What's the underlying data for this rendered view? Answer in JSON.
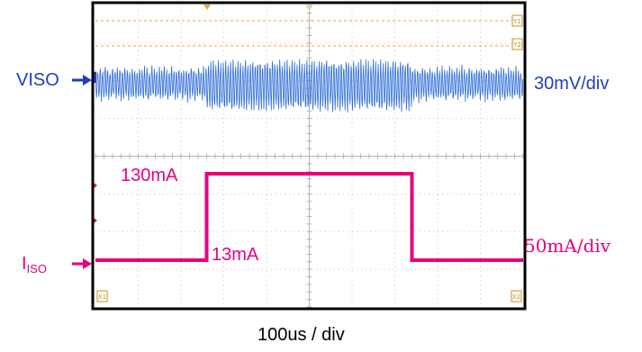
{
  "chart_data": {
    "type": "line",
    "title": "",
    "xlabel": "100us / div",
    "x_divisions": 10,
    "y_divisions": 8,
    "grid": true,
    "series": [
      {
        "name": "VISO",
        "channel": "CH1",
        "scale": "30mV/div",
        "color": "#2f6ed8",
        "waveform": "ripple",
        "ripple_divs_before": 1.0,
        "ripple_divs_during": 1.4,
        "ripple_divs_after": 1.0
      },
      {
        "name": "I",
        "name_sub": "ISO",
        "channel": "CH2",
        "scale": "50mA/div",
        "color": "#e6007e",
        "x_us": [
          0,
          260,
          260,
          740,
          740,
          1000
        ],
        "y_mA": [
          13,
          13,
          130,
          130,
          13,
          13
        ]
      }
    ],
    "annotations": [
      "130mA",
      "13mA"
    ],
    "markers": [
      "Y1",
      "Y2",
      "X1",
      "X2"
    ]
  }
}
